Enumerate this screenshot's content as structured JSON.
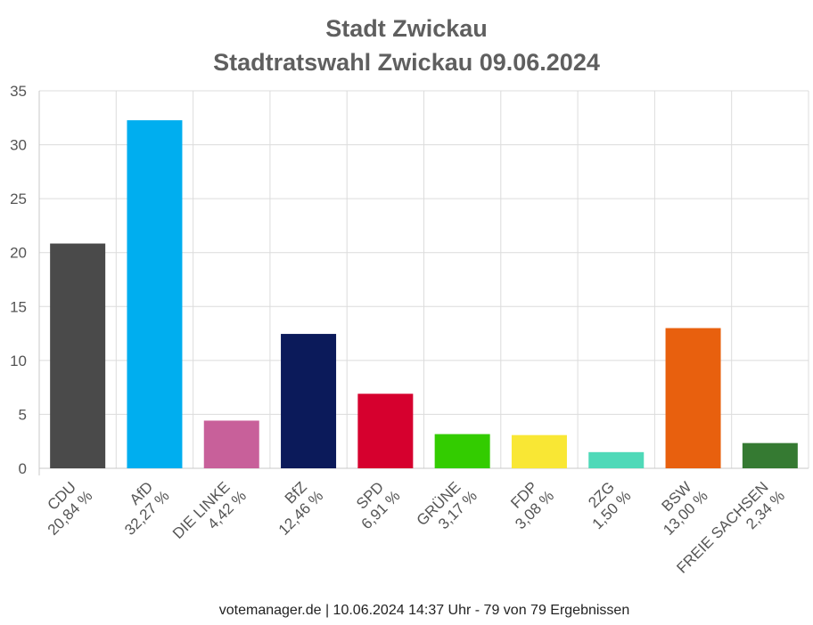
{
  "chart_data": {
    "type": "bar",
    "title": "Stadt Zwickau",
    "subtitle": "Stadtratswahl Zwickau 09.06.2024",
    "categories": [
      "CDU",
      "AfD",
      "DIE LINKE",
      "BfZ",
      "SPD",
      "GRÜNE",
      "FDP",
      "2ZG",
      "BSW",
      "FREIE SACHSEN"
    ],
    "value_labels": [
      "20,84 %",
      "32,27 %",
      "4,42 %",
      "12,46 %",
      "6,91 %",
      "3,17 %",
      "3,08 %",
      "1,50 %",
      "13,00 %",
      "2,34 %"
    ],
    "values": [
      20.84,
      32.27,
      4.42,
      12.46,
      6.91,
      3.17,
      3.08,
      1.5,
      13.0,
      2.34
    ],
    "colors": [
      "#4a4a4a",
      "#00aeef",
      "#c8609a",
      "#0b1a5a",
      "#d6002e",
      "#33cc00",
      "#f9e734",
      "#4fd9b8",
      "#e8600e",
      "#357a32"
    ],
    "ylim": [
      0,
      35
    ],
    "yticks": [
      "0",
      "5",
      "10",
      "15",
      "20",
      "25",
      "30",
      "35"
    ],
    "grid": true,
    "xlabel": "",
    "ylabel": ""
  },
  "footer": "votemanager.de | 10.06.2024 14:37 Uhr - 79 von 79 Ergebnissen"
}
